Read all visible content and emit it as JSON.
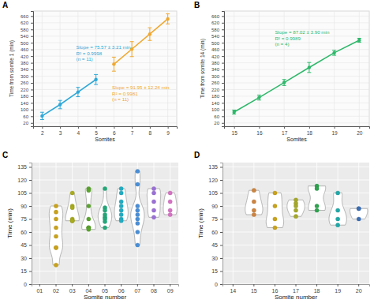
{
  "chart_data": [
    {
      "type": "line",
      "title": "A",
      "x_label": "Somites",
      "y_label": "Time from somite 1 (min)",
      "xlim": [
        1.5,
        9.5
      ],
      "xticks": [
        2,
        3,
        4,
        5,
        6,
        7,
        8,
        9
      ],
      "ylim": [
        0,
        690
      ],
      "yticks": [
        20,
        60,
        100,
        140,
        180,
        220,
        260,
        300,
        340,
        380,
        420,
        460,
        500,
        540,
        580,
        620,
        660
      ],
      "grid": true,
      "marker": "circle",
      "series": [
        {
          "color": "#2ea8d8",
          "x": [
            2,
            3,
            4,
            5
          ],
          "values": [
            62,
            130,
            205,
            280
          ],
          "errors": [
            22,
            25,
            28,
            30
          ],
          "annotation": [
            "Slope = 75.57 ± 3.21 min",
            "R² = 0.9998",
            "(n = 11)"
          ]
        },
        {
          "color": "#f0a830",
          "x": [
            6,
            7,
            8,
            9
          ],
          "values": [
            372,
            462,
            552,
            643
          ],
          "errors": [
            42,
            45,
            38,
            30
          ],
          "annotation": [
            "Slope = 91.95 ± 12.24 min",
            "R² = 0.9981",
            "(n = 11)"
          ]
        }
      ]
    },
    {
      "type": "line",
      "title": "B",
      "x_label": "Somites",
      "y_label": "Time from somite 14 (min)",
      "xlim": [
        14.6,
        20.4
      ],
      "xticks": [
        15,
        16,
        17,
        18,
        19,
        20
      ],
      "ylim": [
        0,
        690
      ],
      "yticks": [
        20,
        60,
        100,
        140,
        180,
        220,
        260,
        300,
        340,
        380,
        420,
        460,
        500,
        540,
        580,
        620,
        660
      ],
      "grid": true,
      "marker": "circle",
      "series": [
        {
          "color": "#2eb86a",
          "x": [
            15,
            16,
            17,
            18,
            19,
            20
          ],
          "values": [
            85,
            172,
            262,
            352,
            440,
            515
          ],
          "errors": [
            12,
            15,
            18,
            30,
            15,
            12
          ],
          "annotation": [
            "Slope = 87.02 ± 3.90 min",
            "R² = 0.9989",
            "(n = 4)"
          ]
        }
      ]
    },
    {
      "type": "violin",
      "title": "C",
      "x_label": "Somite number",
      "y_label": "Time (min)",
      "categories": [
        "01",
        "02",
        "03",
        "04",
        "05",
        "06",
        "07",
        "08",
        "09"
      ],
      "ylim": [
        0,
        140
      ],
      "yticks": [
        0,
        15,
        30,
        45,
        60,
        75,
        90,
        105,
        120,
        135
      ],
      "grid": true,
      "marker": "circle",
      "values": [
        [],
        [
          90,
          83,
          75,
          65,
          55,
          42,
          42,
          22
        ],
        [
          105,
          90,
          88,
          75,
          73,
          73,
          73
        ],
        [
          110,
          108,
          90,
          75,
          65,
          65,
          65,
          63
        ],
        [
          110,
          88,
          85,
          80,
          77,
          75,
          72,
          65
        ],
        [
          110,
          105,
          95,
          90,
          85,
          80,
          75,
          73
        ],
        [
          130,
          115,
          90,
          85,
          80,
          75,
          70,
          60,
          45
        ],
        [
          110,
          105,
          95,
          85,
          77
        ],
        [
          105,
          95,
          85,
          80
        ]
      ],
      "colors": [
        null,
        "#c9a21a",
        "#a9ac1c",
        "#5aa52c",
        "#23a87a",
        "#22acc2",
        "#4a8fd6",
        "#9a70d6",
        "#d672c4"
      ]
    },
    {
      "type": "violin",
      "title": "D",
      "x_label": "Somite number",
      "y_label": "Time (min)",
      "categories": [
        "14",
        "15",
        "16",
        "17",
        "18",
        "19",
        "20"
      ],
      "ylim": [
        0,
        140
      ],
      "yticks": [
        0,
        15,
        30,
        45,
        60,
        75,
        90,
        105,
        120,
        135
      ],
      "grid": true,
      "marker": "circle",
      "values": [
        [],
        [
          108,
          95,
          85,
          80
        ],
        [
          105,
          90,
          75,
          65
        ],
        [
          97,
          93,
          90,
          85,
          78
        ],
        [
          113,
          110,
          90,
          85
        ],
        [
          105,
          85,
          75,
          68
        ],
        [
          87,
          87,
          75
        ]
      ],
      "colors": [
        null,
        "#cc8440",
        "#c9a21a",
        "#a5a82a",
        "#2ea44e",
        "#22a8a8",
        "#3a6fb6"
      ]
    }
  ]
}
